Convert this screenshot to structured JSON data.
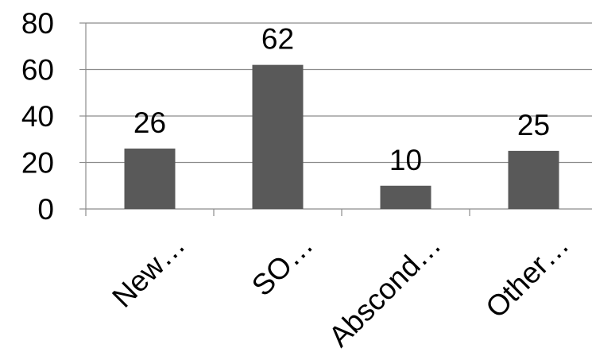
{
  "chart_data": {
    "type": "bar",
    "categories": [
      "New…",
      "SO…",
      "Abscond…",
      "Other…"
    ],
    "values": [
      26,
      62,
      10,
      25
    ],
    "data_labels": [
      "26",
      "62",
      "10",
      "25"
    ],
    "y_ticks": [
      0,
      20,
      40,
      60,
      80
    ],
    "y_tick_labels": [
      "0",
      "20",
      "40",
      "60",
      "80"
    ],
    "ylim": [
      0,
      80
    ],
    "grid": true,
    "legend": "none",
    "colors": {
      "bar": "#595959",
      "grid": "#8c8c8c",
      "axis": "#8c8c8c",
      "text": "#000000"
    }
  }
}
